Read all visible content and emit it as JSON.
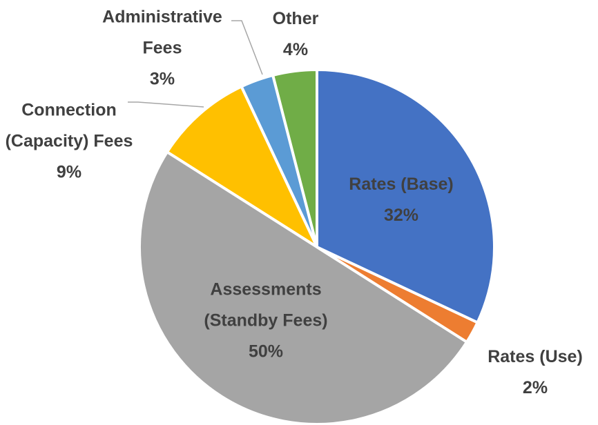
{
  "chart_data": {
    "type": "pie",
    "categories": [
      "Rates (Base)",
      "Rates (Use)",
      "Assessments (Standby Fees)",
      "Connection (Capacity) Fees",
      "Administrative Fees",
      "Other"
    ],
    "values": [
      32,
      2,
      50,
      9,
      3,
      4
    ],
    "value_labels": [
      "32%",
      "2%",
      "50%",
      "9%",
      "3%",
      "4%"
    ],
    "colors": [
      "#4472c4",
      "#ed7d31",
      "#a5a5a5",
      "#ffc000",
      "#5b9bd5",
      "#70ad47"
    ]
  }
}
